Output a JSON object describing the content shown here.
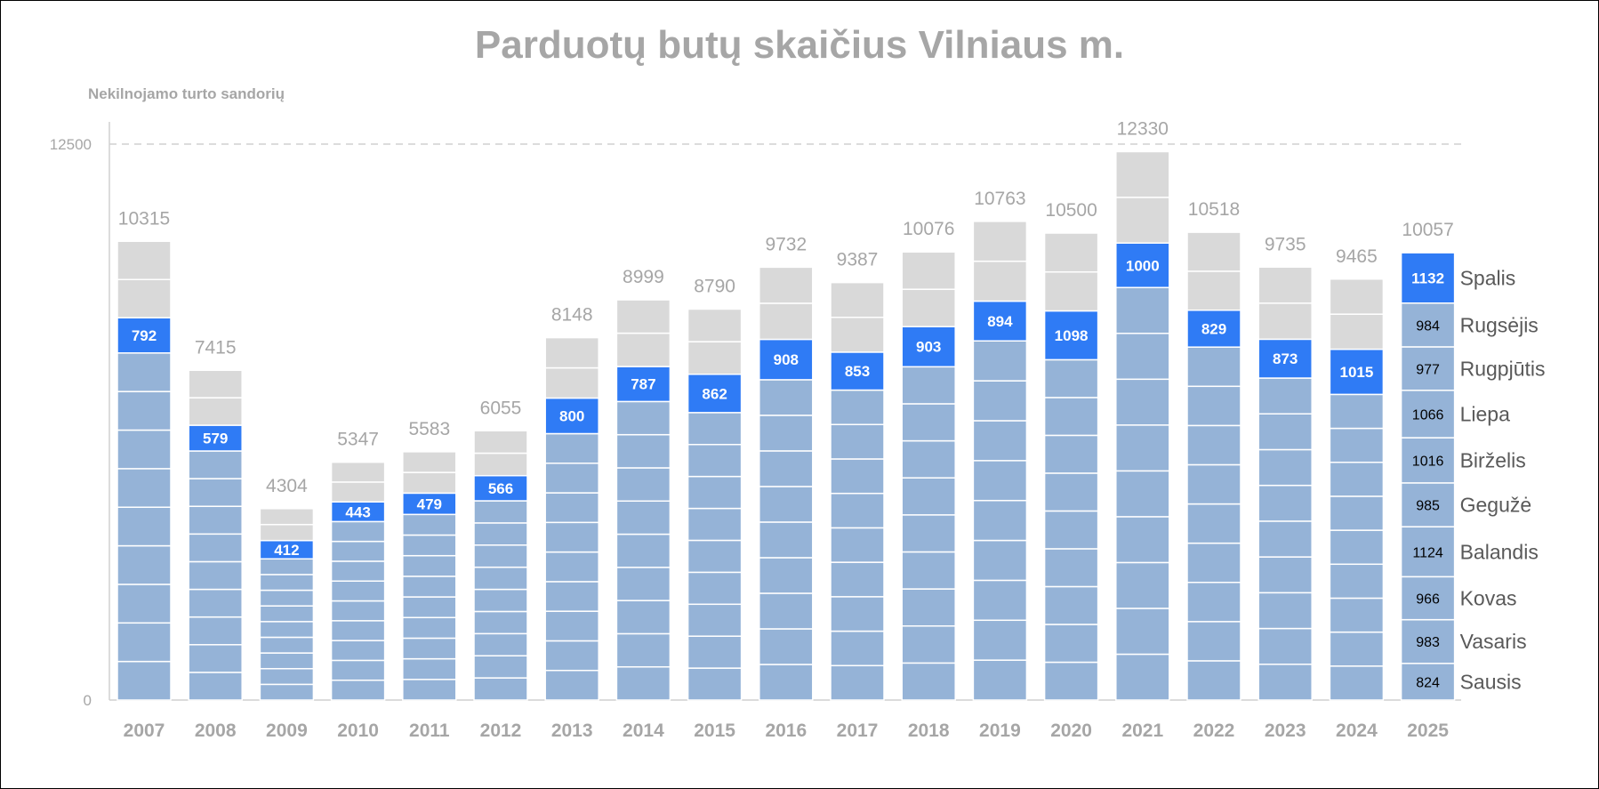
{
  "chart_data": {
    "type": "bar",
    "title": "Parduotų butų skaičius Vilniaus m.",
    "ylabel": "Nekilnojamo turto sandorių",
    "ylim": [
      0,
      12500
    ],
    "yticks": [
      0,
      12500
    ],
    "categories": [
      "2007",
      "2008",
      "2009",
      "2010",
      "2011",
      "2012",
      "2013",
      "2014",
      "2015",
      "2016",
      "2017",
      "2018",
      "2019",
      "2020",
      "2021",
      "2022",
      "2023",
      "2024",
      "2025"
    ],
    "totals": [
      10315,
      7415,
      4304,
      5347,
      5583,
      6055,
      8148,
      8999,
      8790,
      9732,
      9387,
      10076,
      10763,
      10500,
      12330,
      10518,
      9735,
      9465,
      10057
    ],
    "highlight_month": "Spalis",
    "highlight_values": [
      792,
      579,
      412,
      443,
      479,
      566,
      800,
      787,
      862,
      908,
      853,
      903,
      894,
      1098,
      1000,
      829,
      873,
      1015,
      1132
    ],
    "months": [
      "Sausis",
      "Vasaris",
      "Kovas",
      "Balandis",
      "Gegužė",
      "Birželis",
      "Liepa",
      "Rugpjūtis",
      "Rugsėjis",
      "Spalis"
    ],
    "monthly_2025": [
      824,
      983,
      966,
      1124,
      985,
      1016,
      1066,
      977,
      984,
      1132
    ],
    "colors": {
      "before_highlight": "#95b3d7",
      "highlight": "#2f7bf5",
      "after_highlight": "#d9d9d9",
      "segment_divider": "#ffffff",
      "gridline": "#d0d0d0",
      "axis_text": "#a6a6a6"
    }
  }
}
